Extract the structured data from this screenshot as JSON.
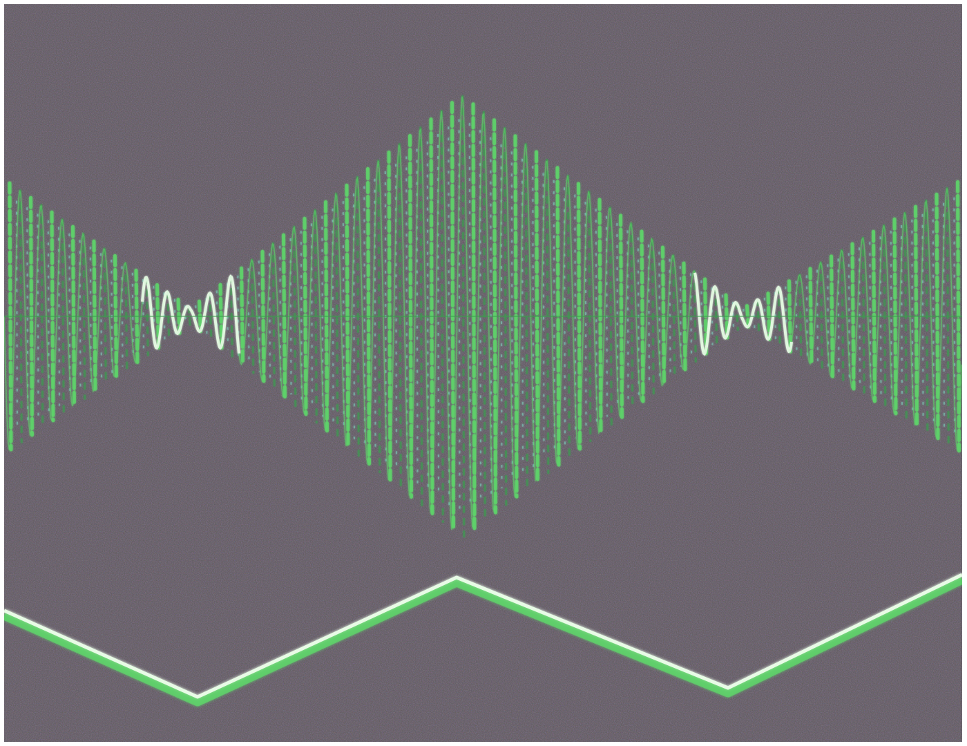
{
  "image": {
    "kind": "oscilloscope-photo",
    "colors": {
      "screen_background": "#5b5656",
      "noise_purple": "#6a5a86",
      "noise_brown": "#6b5a46",
      "trace_green": "#5fd36a",
      "trace_green_dim": "#3f9a50",
      "trace_highlight": "#e8fbe6",
      "trace_cyan": "#7fe0c8"
    }
  },
  "traces": [
    {
      "name": "amplitude-modulated-carrier",
      "shape": "diamond-envelope",
      "envelope_max_fraction": 1.0,
      "envelope_min_fraction": 0.05,
      "nodes_count": 2
    },
    {
      "name": "triangle-wave",
      "shape": "triangle"
    }
  ]
}
